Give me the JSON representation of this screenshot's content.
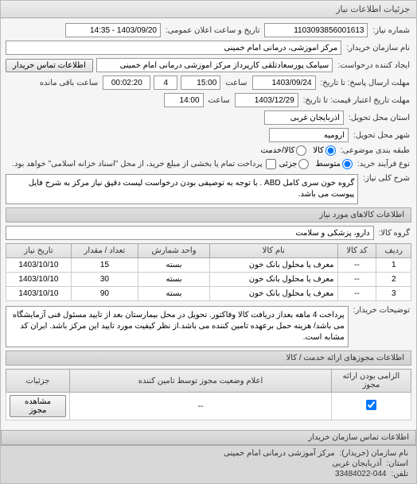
{
  "header": {
    "title": "جزئیات اطلاعات نیاز"
  },
  "fields": {
    "request_no_label": "شماره نیاز:",
    "request_no": "1103093856001613",
    "public_date_label": "تاریخ و ساعت اعلان عمومی:",
    "public_date": "1403/09/20 - 14:35",
    "buyer_name_label": "نام سازمان خریدار:",
    "buyer_name": "مرکز آموزشی، درمانی امام خمینی",
    "creator_label": "ایجاد کننده درخواست:",
    "creator": "سیامک پورسعادتلقی کارپرداز مرکز آموزشی درمانی امام خمینی",
    "contact_btn": "اطلاعات تماس خریدار",
    "deadline_label": "مهلت ارسال پاسخ: تا تاریخ:",
    "deadline_date": "1403/09/24",
    "deadline_time_label": "ساعت",
    "deadline_time": "15:00",
    "remain_time": "00:02:20",
    "remain_label": "ساعت باقی مانده",
    "remain_count": "4",
    "validity_label": "مهلت تاریخ اعتبار قیمت: تا تاریخ:",
    "validity_date": "1403/12/29",
    "validity_time_label": "ساعت",
    "validity_time": "14:00",
    "province_label": "استان محل تحویل:",
    "province": "آذربایجان غربی",
    "city_label": "شهر محل تحویل:",
    "city": "ارومیه",
    "category_label": "طبقه بندی موضوعی:",
    "cat_goods": "کالا",
    "cat_service": "کالا/خدمت",
    "payment_type_label": "نوع فرآیند خرید:",
    "pay_mid": "متوسط",
    "pay_small": "جزئی",
    "payment_note": "پرداخت تمام یا بخشی از مبلغ خرید، از محل \"اسناد خزانه اسلامی\" خواهد بود.",
    "general_desc_label": "شرح کلی نیاز:",
    "general_desc": "گروه خون سری کامل ABD . با توجه به توصیفی بودن درخواست لیست دقیق نیاز مرکز به شرح فایل پیوست می باشد.",
    "goods_info_title": "اطلاعات کالاهای مورد نیاز",
    "goods_group_label": "گروه کالا:",
    "goods_group": "دارو، پزشکی و سلامت",
    "buyer_conditions_label": "توضیحات خریدار:",
    "buyer_conditions": "پرداخت 4 ماهه بعداز دریافت کالا وفاکتور. تحویل در محل بیمارستان بعد از تایید مسئول فنی آزمایشگاه می باشد/ هزینه حمل برعهده تامین کننده می باشد.از نظر کیفیت مورد تایید این مرکز باشد. ایران کد مشابه است.",
    "permits_title": "اطلاعات مجوزهای ارائه خدمت / کالا",
    "contact_info_title": "اطلاعات تماس سازمان خریدار",
    "org_name_label": "نام سازمان (خریدار):",
    "org_name": "مرکز آموزشی درمانی امام خمینی",
    "org_province_label": "استان:",
    "org_province": "آذربایجان غربی",
    "org_phone_label": "تلفن:",
    "org_phone": "33484022-044"
  },
  "goods_table": {
    "headers": {
      "row": "ردیف",
      "code": "کد کالا",
      "name": "نام کالا",
      "unit": "واحد شمارش",
      "qty": "تعداد / مقدار",
      "date": "تاریخ نیاز"
    },
    "rows": [
      {
        "row": "1",
        "code": "--",
        "name": "معرف یا محلول بانک خون",
        "unit": "بسته",
        "qty": "15",
        "date": "1403/10/10"
      },
      {
        "row": "2",
        "code": "--",
        "name": "معرف یا محلول بانک خون",
        "unit": "بسته",
        "qty": "30",
        "date": "1403/10/10"
      },
      {
        "row": "3",
        "code": "--",
        "name": "معرف یا محلول بانک خون",
        "unit": "بسته",
        "qty": "90",
        "date": "1403/10/10"
      }
    ]
  },
  "permits_table": {
    "headers": {
      "mandatory": "الزامی بودن ارائه مجوز",
      "desc": "اعلام وضعیت مجوز توسط تامین کننده",
      "details": "جزئیات"
    },
    "row": {
      "desc": "--",
      "btn": "مشاهده مجوز"
    }
  }
}
